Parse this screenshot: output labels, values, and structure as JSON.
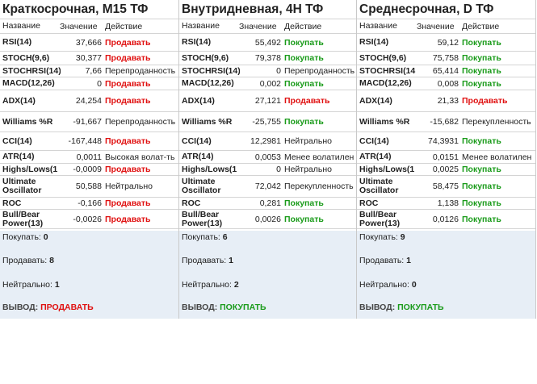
{
  "columns": {
    "name": "Название",
    "value": "Значение",
    "action": "Действие"
  },
  "panels": [
    {
      "title": "Краткосрочная, M15 ТФ",
      "rows": [
        {
          "name": "RSI(14)",
          "value": "37,666",
          "action": "Продавать",
          "status": "sell"
        },
        {
          "name": "STOCH(9,6)",
          "value": "30,377",
          "action": "Продавать",
          "status": "sell"
        },
        {
          "name": "STOCHRSI(14)",
          "value": "7,66",
          "action": "Перепроданность",
          "status": "neutral"
        },
        {
          "name": "MACD(12,26)",
          "value": "0",
          "action": "Продавать",
          "status": "sell"
        },
        {
          "name": "ADX(14)",
          "value": "24,254",
          "action": "Продавать",
          "status": "sell"
        },
        {
          "name": "Williams %R",
          "value": "-91,667",
          "action": "Перепроданность",
          "status": "neutral"
        },
        {
          "name": "CCI(14)",
          "value": "-167,448",
          "action": "Продавать",
          "status": "sell"
        },
        {
          "name": "ATR(14)",
          "value": "0,0011",
          "action": "Высокая волат-ть",
          "status": "neutral"
        },
        {
          "name": "Highs/Lows(1",
          "value": "-0,0009",
          "action": "Продавать",
          "status": "sell"
        },
        {
          "name": "Ultimate Oscillator",
          "value": "50,588",
          "action": "Нейтрально",
          "status": "neutral"
        },
        {
          "name": "ROC",
          "value": "-0,166",
          "action": "Продавать",
          "status": "sell"
        },
        {
          "name": "Bull/Bear Power(13)",
          "value": "-0,0026",
          "action": "Продавать",
          "status": "sell"
        }
      ],
      "summary": {
        "buy_label": "Покупать:",
        "buy_count": "0",
        "sell_label": "Продавать:",
        "sell_count": "8",
        "neutral_label": "Нейтрально:",
        "neutral_count": "1",
        "conclusion_label": "ВЫВОД:",
        "conclusion": "ПРОДАВАТЬ",
        "conclusion_status": "sell"
      }
    },
    {
      "title": "Внутридневная, 4Н ТФ",
      "rows": [
        {
          "name": "RSI(14)",
          "value": "55,492",
          "action": "Покупать",
          "status": "buy"
        },
        {
          "name": "STOCH(9,6)",
          "value": "79,378",
          "action": "Покупать",
          "status": "buy"
        },
        {
          "name": "STOCHRSI(14)",
          "value": "0",
          "action": "Перепроданность",
          "status": "neutral"
        },
        {
          "name": "MACD(12,26)",
          "value": "0,002",
          "action": "Покупать",
          "status": "buy"
        },
        {
          "name": "ADX(14)",
          "value": "27,121",
          "action": "Продавать",
          "status": "sell"
        },
        {
          "name": "Williams %R",
          "value": "-25,755",
          "action": "Покупать",
          "status": "buy"
        },
        {
          "name": "CCI(14)",
          "value": "12,2981",
          "action": "Нейтрально",
          "status": "neutral"
        },
        {
          "name": "ATR(14)",
          "value": "0,0053",
          "action": "Менее волатилен",
          "status": "neutral"
        },
        {
          "name": "Highs/Lows(1",
          "value": "0",
          "action": "Нейтрально",
          "status": "neutral"
        },
        {
          "name": "Ultimate Oscillator",
          "value": "72,042",
          "action": "Перекупленность",
          "status": "neutral"
        },
        {
          "name": "ROC",
          "value": "0,281",
          "action": "Покупать",
          "status": "buy"
        },
        {
          "name": "Bull/Bear Power(13)",
          "value": "0,0026",
          "action": "Покупать",
          "status": "buy"
        }
      ],
      "summary": {
        "buy_label": "Покупать:",
        "buy_count": "6",
        "sell_label": "Продавать:",
        "sell_count": "1",
        "neutral_label": "Нейтрально:",
        "neutral_count": "2",
        "conclusion_label": "ВЫВОД:",
        "conclusion": "ПОКУПАТЬ",
        "conclusion_status": "buy"
      }
    },
    {
      "title": "Среднесрочная, D ТФ",
      "rows": [
        {
          "name": "RSI(14)",
          "value": "59,12",
          "action": "Покупать",
          "status": "buy"
        },
        {
          "name": "STOCH(9,6)",
          "value": "75,758",
          "action": "Покупать",
          "status": "buy"
        },
        {
          "name": "STOCHRSI(14",
          "value": "65,414",
          "action": "Покупать",
          "status": "buy"
        },
        {
          "name": "MACD(12,26)",
          "value": "0,008",
          "action": "Покупать",
          "status": "buy"
        },
        {
          "name": "ADX(14)",
          "value": "21,33",
          "action": "Продавать",
          "status": "sell"
        },
        {
          "name": "Williams %R",
          "value": "-15,682",
          "action": "Перекупленность",
          "status": "neutral"
        },
        {
          "name": "CCI(14)",
          "value": "74,3931",
          "action": "Покупать",
          "status": "buy"
        },
        {
          "name": "ATR(14)",
          "value": "0,0151",
          "action": "Менее волатилен",
          "status": "neutral"
        },
        {
          "name": "Highs/Lows(1",
          "value": "0,0025",
          "action": "Покупать",
          "status": "buy"
        },
        {
          "name": "Ultimate Oscillator",
          "value": "58,475",
          "action": "Покупать",
          "status": "buy"
        },
        {
          "name": "ROC",
          "value": "1,138",
          "action": "Покупать",
          "status": "buy"
        },
        {
          "name": "Bull/Bear Power(13)",
          "value": "0,0126",
          "action": "Покупать",
          "status": "buy"
        }
      ],
      "summary": {
        "buy_label": "Покупать:",
        "buy_count": "9",
        "sell_label": "Продавать:",
        "sell_count": "1",
        "neutral_label": "Нейтрально:",
        "neutral_count": "0",
        "conclusion_label": "ВЫВОД:",
        "conclusion": "ПОКУПАТЬ",
        "conclusion_status": "buy"
      }
    }
  ],
  "colors": {
    "buy": "#1a9b1a",
    "sell": "#e01010",
    "summary_bg": "#e7eef6",
    "grid": "#d4d4d4"
  }
}
